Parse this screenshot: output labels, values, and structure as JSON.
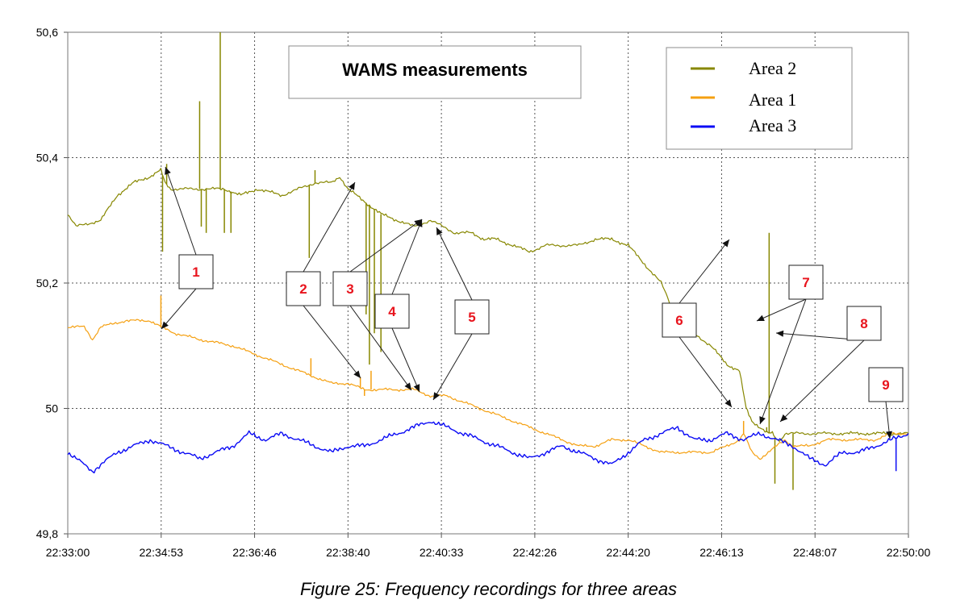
{
  "caption": "Figure 25: Frequency recordings for three areas",
  "chart_data": {
    "type": "line",
    "title": "WAMS measurements",
    "xlabel": "",
    "ylabel": "",
    "x_ticks": [
      "22:33:00",
      "22:34:53",
      "22:36:46",
      "22:38:40",
      "22:40:33",
      "22:42:26",
      "22:44:20",
      "22:46:13",
      "22:48:07",
      "22:50:00"
    ],
    "y_ticks": [
      "49,8",
      "50",
      "50,2",
      "50,4",
      "50,6"
    ],
    "ylim": [
      49.8,
      50.6
    ],
    "x_unit": "seconds after 22:33:00",
    "xlim": [
      0,
      1020
    ],
    "grid": true,
    "legend_position": "top-right",
    "series": [
      {
        "name": "Area 2",
        "color": "#878700",
        "x": [
          0,
          10,
          40,
          60,
          80,
          100,
          113,
          118,
          125,
          150,
          190,
          210,
          230,
          260,
          280,
          300,
          320,
          330,
          340,
          350,
          360,
          380,
          400,
          420,
          440,
          470,
          490,
          505,
          520,
          540,
          560,
          580,
          600,
          620,
          640,
          660,
          680,
          700,
          720,
          740,
          760,
          780,
          800,
          815,
          823,
          830,
          840,
          850,
          855,
          860,
          865,
          870,
          880,
          900,
          920,
          940,
          960,
          980,
          1000,
          1020
        ],
        "y": [
          50.31,
          50.29,
          50.3,
          50.34,
          50.36,
          50.37,
          50.38,
          50.36,
          50.35,
          50.35,
          50.35,
          50.34,
          50.35,
          50.34,
          50.35,
          50.36,
          50.36,
          50.37,
          50.35,
          50.34,
          50.33,
          50.31,
          50.3,
          50.29,
          50.3,
          50.28,
          50.28,
          50.27,
          50.27,
          50.26,
          50.25,
          50.26,
          50.26,
          50.26,
          50.27,
          50.27,
          50.26,
          50.23,
          50.2,
          50.14,
          50.12,
          50.1,
          50.07,
          50.06,
          50.0,
          49.98,
          49.97,
          49.96,
          49.96,
          49.95,
          49.95,
          49.96,
          49.96,
          49.96,
          49.96,
          49.96,
          49.96,
          49.96,
          49.96,
          49.96
        ],
        "spikes": [
          [
            115,
            50.25
          ],
          [
            120,
            50.39
          ],
          [
            160,
            50.49
          ],
          [
            162,
            50.29
          ],
          [
            168,
            50.28
          ],
          [
            185,
            50.6
          ],
          [
            190,
            50.28
          ],
          [
            198,
            50.28
          ],
          [
            293,
            50.24
          ],
          [
            300,
            50.38
          ],
          [
            362,
            50.15
          ],
          [
            366,
            50.07
          ],
          [
            372,
            50.12
          ],
          [
            380,
            50.09
          ],
          [
            848,
            49.97
          ],
          [
            851,
            50.28
          ],
          [
            858,
            49.88
          ],
          [
            866,
            49.95
          ],
          [
            880,
            49.87
          ]
        ]
      },
      {
        "name": "Area 1",
        "color": "#f5a011",
        "x": [
          0,
          20,
          30,
          40,
          70,
          100,
          113,
          130,
          160,
          200,
          240,
          280,
          300,
          320,
          340,
          360,
          380,
          400,
          420,
          440,
          460,
          480,
          500,
          520,
          540,
          560,
          580,
          600,
          620,
          640,
          660,
          680,
          700,
          720,
          740,
          760,
          780,
          800,
          815,
          820,
          830,
          840,
          850,
          860,
          870,
          880,
          900,
          920,
          940,
          960,
          980,
          1000,
          1020
        ],
        "y": [
          50.13,
          50.13,
          50.11,
          50.13,
          50.14,
          50.14,
          50.13,
          50.12,
          50.11,
          50.1,
          50.08,
          50.06,
          50.05,
          50.04,
          50.04,
          50.03,
          50.03,
          50.03,
          50.03,
          50.02,
          50.02,
          50.01,
          50.0,
          49.99,
          49.98,
          49.97,
          49.96,
          49.95,
          49.94,
          49.94,
          49.95,
          49.95,
          49.94,
          49.93,
          49.93,
          49.93,
          49.93,
          49.94,
          49.95,
          49.96,
          49.93,
          49.92,
          49.93,
          49.94,
          49.95,
          49.94,
          49.94,
          49.95,
          49.95,
          49.95,
          49.95,
          49.96,
          49.96
        ],
        "spikes": [
          [
            113,
            50.18
          ],
          [
            295,
            50.08
          ],
          [
            355,
            50.05
          ],
          [
            360,
            50.02
          ],
          [
            368,
            50.06
          ],
          [
            372,
            50.03
          ],
          [
            820,
            49.98
          ]
        ]
      },
      {
        "name": "Area 3",
        "color": "#0b0bf5",
        "x": [
          0,
          10,
          20,
          30,
          40,
          60,
          80,
          100,
          120,
          140,
          160,
          180,
          200,
          220,
          240,
          260,
          280,
          300,
          320,
          340,
          360,
          380,
          400,
          420,
          440,
          460,
          480,
          500,
          520,
          540,
          560,
          580,
          600,
          620,
          640,
          660,
          680,
          700,
          720,
          740,
          760,
          780,
          800,
          820,
          840,
          860,
          880,
          900,
          920,
          940,
          960,
          980,
          1000,
          1020
        ],
        "y": [
          49.93,
          49.92,
          49.91,
          49.9,
          49.91,
          49.93,
          49.94,
          49.95,
          49.94,
          49.93,
          49.92,
          49.93,
          49.94,
          49.96,
          49.95,
          49.96,
          49.95,
          49.94,
          49.93,
          49.94,
          49.94,
          49.95,
          49.96,
          49.97,
          49.98,
          49.97,
          49.96,
          49.95,
          49.94,
          49.93,
          49.92,
          49.93,
          49.94,
          49.93,
          49.92,
          49.91,
          49.93,
          49.95,
          49.96,
          49.97,
          49.95,
          49.95,
          49.96,
          49.95,
          49.96,
          49.95,
          49.94,
          49.92,
          49.91,
          49.93,
          49.93,
          49.94,
          49.95,
          49.96
        ],
        "spikes": [
          [
            1005,
            49.9
          ]
        ]
      }
    ],
    "annotations": [
      {
        "label": "1"
      },
      {
        "label": "2"
      },
      {
        "label": "3"
      },
      {
        "label": "4"
      },
      {
        "label": "5"
      },
      {
        "label": "6"
      },
      {
        "label": "7"
      },
      {
        "label": "8"
      },
      {
        "label": "9"
      }
    ]
  }
}
